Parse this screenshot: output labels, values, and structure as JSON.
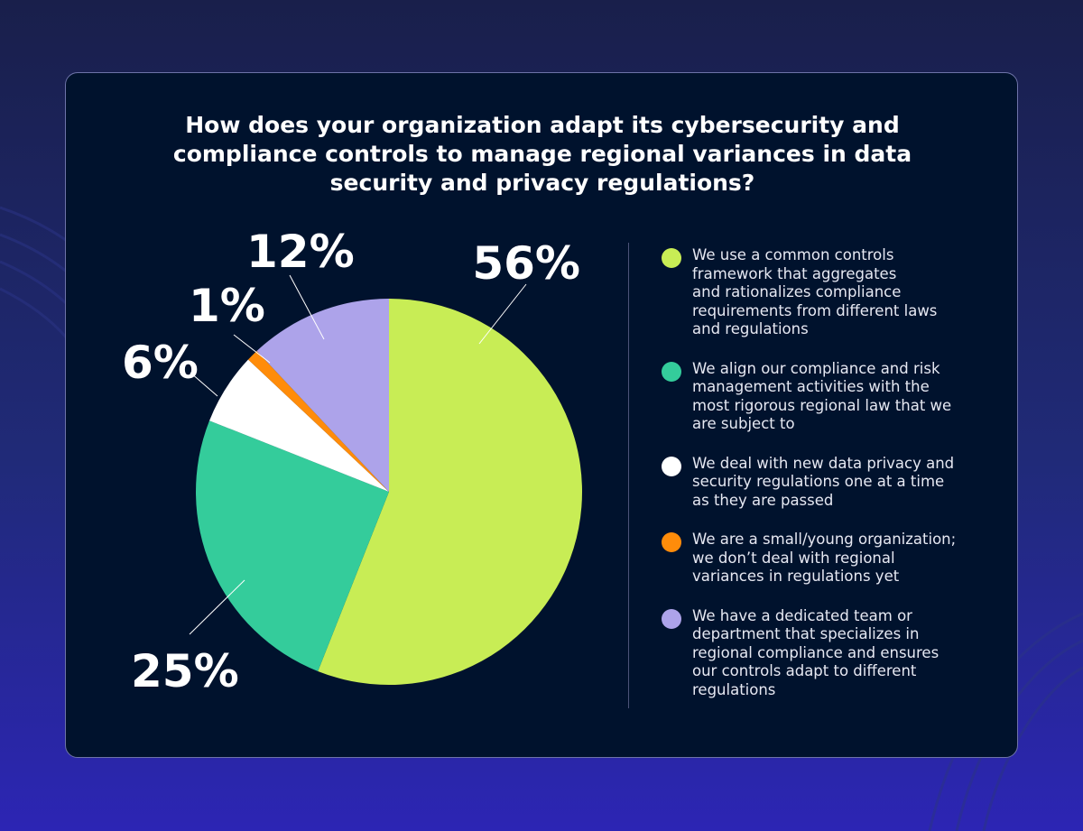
{
  "title_lines": [
    "How does your organization adapt its cybersecurity and",
    "compliance controls to manage regional variances in data",
    "security and privacy regulations?"
  ],
  "chart_data": {
    "type": "pie",
    "title": "How does your organization adapt its cybersecurity and compliance controls to manage regional variances in data security and privacy regulations?",
    "slices": [
      {
        "label_lines": [
          "We use a common controls",
          "framework that aggregates",
          "and rationalizes compliance",
          "requirements from different laws",
          "and regulations"
        ],
        "value": 56,
        "value_label": "56%",
        "color": "#c8ed55"
      },
      {
        "label_lines": [
          "We align our compliance and risk",
          "management activities with the",
          "most rigorous regional law that we",
          "are subject to"
        ],
        "value": 25,
        "value_label": "25%",
        "color": "#34cc9b"
      },
      {
        "label_lines": [
          "We deal with new data privacy and",
          "security regulations one at a time",
          "as they are passed"
        ],
        "value": 6,
        "value_label": "6%",
        "color": "#ffffff"
      },
      {
        "label_lines": [
          "We are a small/young organization;",
          "we don’t deal with regional",
          "variances in regulations yet"
        ],
        "value": 1,
        "value_label": "1%",
        "color": "#ff8c0a"
      },
      {
        "label_lines": [
          "We have a dedicated team or",
          "department that specializes in",
          "regional compliance and ensures",
          "our controls adapt to different",
          "regulations"
        ],
        "value": 12,
        "value_label": "12%",
        "color": "#ada3ea"
      }
    ],
    "start": "12 o'clock",
    "direction": "clockwise",
    "legend_position": "right"
  }
}
